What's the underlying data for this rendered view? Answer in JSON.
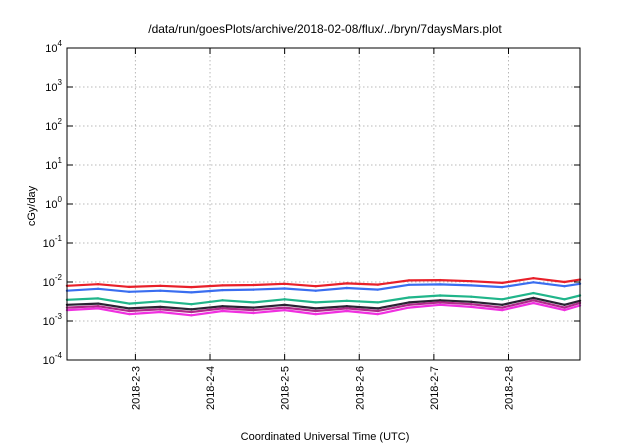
{
  "chart_data": {
    "type": "line",
    "title": "/data/run/goesPlots/archive/2018-02-08/flux/../bryn/7daysMars.plot",
    "xlabel": "Coordinated Universal Time (UTC)",
    "ylabel": "cGy/day",
    "y_scale": "log",
    "ylim": [
      0.0001,
      10000
    ],
    "y_ticks": [
      {
        "value": 0.0001,
        "base": "10",
        "exp": "-4"
      },
      {
        "value": 0.001,
        "base": "10",
        "exp": "-3"
      },
      {
        "value": 0.01,
        "base": "10",
        "exp": "-2"
      },
      {
        "value": 0.1,
        "base": "10",
        "exp": "-1"
      },
      {
        "value": 1,
        "base": "10",
        "exp": "0"
      },
      {
        "value": 10,
        "base": "10",
        "exp": "1"
      },
      {
        "value": 100,
        "base": "10",
        "exp": "2"
      },
      {
        "value": 1000,
        "base": "10",
        "exp": "3"
      },
      {
        "value": 10000,
        "base": "10",
        "exp": "4"
      }
    ],
    "xlim": [
      "2018-02-02T02:00",
      "2018-02-08T23:00"
    ],
    "x_ticks": [
      "2018-2-3",
      "2018-2-4",
      "2018-2-5",
      "2018-2-6",
      "2018-2-7",
      "2018-2-8"
    ],
    "grid": true,
    "x": [
      "2018-02-02T02:00",
      "2018-02-02T12:00",
      "2018-02-02T22:00",
      "2018-02-03T08:00",
      "2018-02-03T18:00",
      "2018-02-04T04:00",
      "2018-02-04T14:00",
      "2018-02-05T00:00",
      "2018-02-05T10:00",
      "2018-02-05T20:00",
      "2018-02-06T06:00",
      "2018-02-06T16:00",
      "2018-02-07T02:00",
      "2018-02-07T12:00",
      "2018-02-07T22:00",
      "2018-02-08T08:00",
      "2018-02-08T18:00",
      "2018-02-08T23:00"
    ],
    "series": [
      {
        "color": "#e8202a",
        "values": [
          0.008,
          0.0088,
          0.0075,
          0.008,
          0.0074,
          0.0082,
          0.0084,
          0.009,
          0.0078,
          0.0092,
          0.0086,
          0.011,
          0.0112,
          0.0105,
          0.0095,
          0.0125,
          0.01,
          0.0115
        ]
      },
      {
        "color": "#3a6ef0",
        "values": [
          0.006,
          0.0067,
          0.0056,
          0.006,
          0.0054,
          0.0062,
          0.0064,
          0.0068,
          0.006,
          0.007,
          0.0064,
          0.0085,
          0.0087,
          0.0082,
          0.0074,
          0.0098,
          0.0078,
          0.009
        ]
      },
      {
        "color": "#20b58a",
        "values": [
          0.0035,
          0.0038,
          0.0028,
          0.0032,
          0.0027,
          0.0034,
          0.003,
          0.0036,
          0.003,
          0.0033,
          0.003,
          0.004,
          0.0045,
          0.0042,
          0.0036,
          0.0052,
          0.0036,
          0.0045
        ]
      },
      {
        "color": "#2a2333",
        "values": [
          0.0026,
          0.0028,
          0.0021,
          0.0023,
          0.002,
          0.0024,
          0.0022,
          0.0026,
          0.0021,
          0.0024,
          0.0021,
          0.003,
          0.0034,
          0.0031,
          0.0026,
          0.0039,
          0.0026,
          0.0033
        ]
      },
      {
        "color": "#b02a8a",
        "values": [
          0.0022,
          0.0024,
          0.0018,
          0.002,
          0.0017,
          0.0021,
          0.0019,
          0.0022,
          0.0018,
          0.0021,
          0.0018,
          0.0026,
          0.003,
          0.0027,
          0.0022,
          0.0034,
          0.0022,
          0.0029
        ]
      },
      {
        "color": "#f030e0",
        "values": [
          0.0019,
          0.0021,
          0.0015,
          0.0017,
          0.0014,
          0.0018,
          0.0016,
          0.0019,
          0.0015,
          0.0018,
          0.0015,
          0.0022,
          0.0026,
          0.0023,
          0.0019,
          0.0029,
          0.0019,
          0.0025
        ]
      }
    ]
  }
}
